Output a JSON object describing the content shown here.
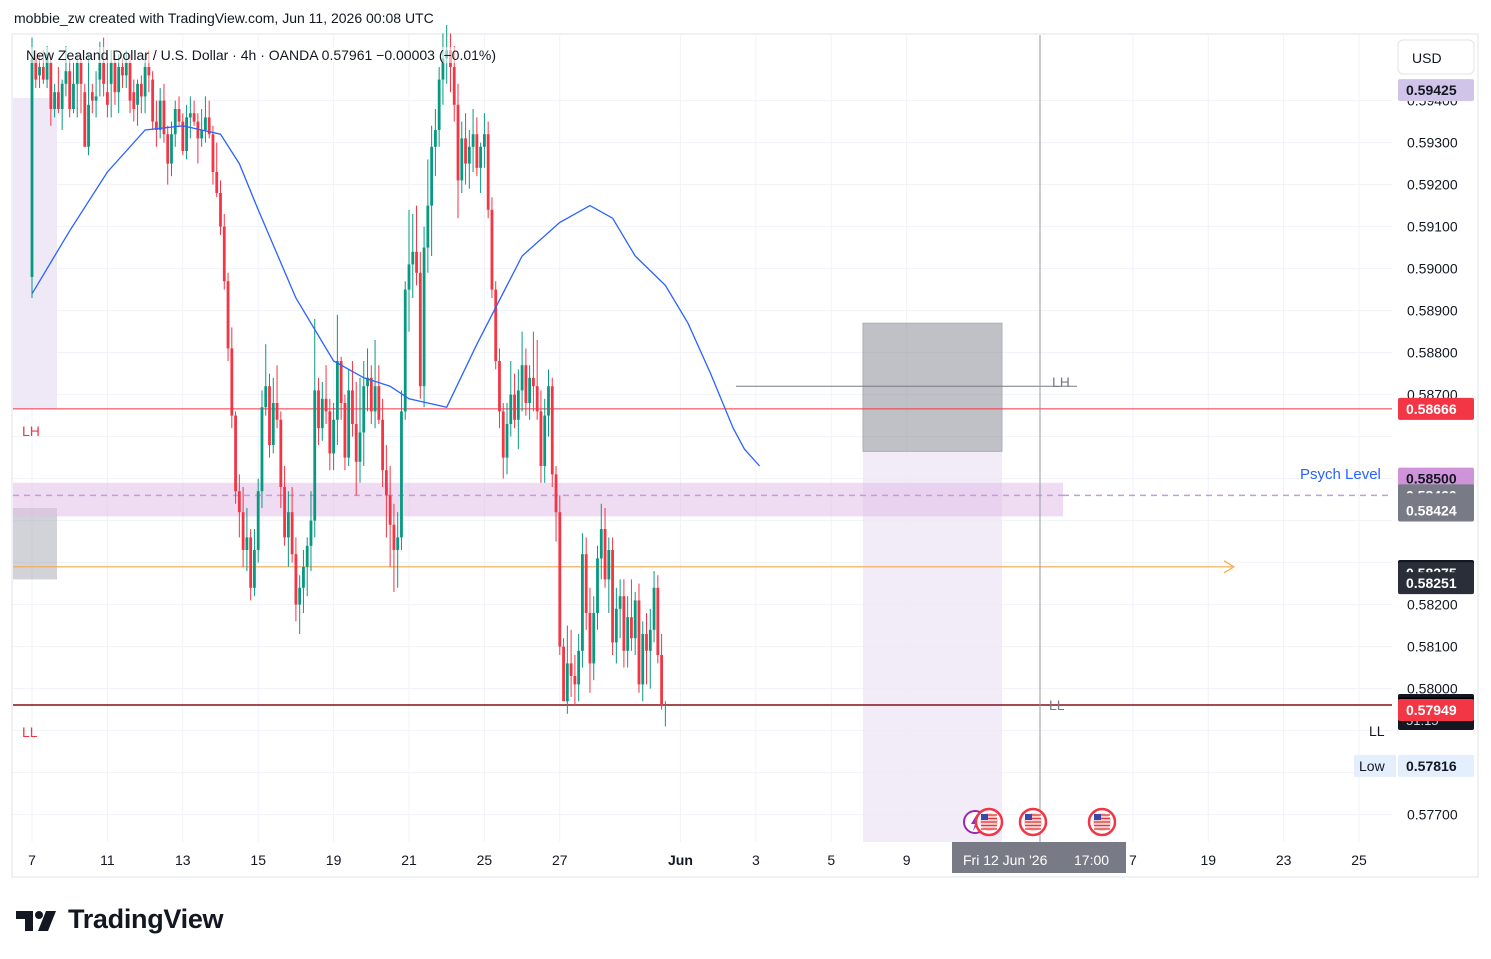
{
  "header": {
    "attribution": "mobbie_zw created with TradingView.com, Jun 11, 2026 00:08 UTC",
    "symbol_line": "New Zealand Dollar / U.S. Dollar · 4h · OANDA  0.57961  −0.00003 (−0.01%)"
  },
  "brand": {
    "name": "TradingView",
    "icon": "tradingview-logo-icon"
  },
  "colors": {
    "up": "#089981",
    "down": "#f23645",
    "ema": "#2962ff",
    "red_line": "#f23645",
    "dark_line": "#880e1c",
    "orange_line": "#f7a94c",
    "psych_line": "#c39ce0",
    "zone_fill": "#e1bee7",
    "gray_box": "#b2b5be",
    "lavender": "#ede7f6"
  },
  "price_scale": {
    "currency": "USD",
    "ticks": [
      "0.59400",
      "0.59300",
      "0.59200",
      "0.59100",
      "0.59000",
      "0.58900",
      "0.58800",
      "0.58700",
      "0.58200",
      "0.58100",
      "0.58000",
      "0.57700"
    ],
    "tick_values": [
      0.594,
      0.593,
      0.592,
      0.591,
      0.59,
      0.589,
      0.588,
      0.587,
      0.582,
      0.581,
      0.58,
      0.577
    ],
    "labels": [
      {
        "text": "0.59425",
        "value": 0.59425,
        "bg": "#d1c4e9",
        "fg": "#131722"
      },
      {
        "text": "0.58666",
        "value": 0.58666,
        "bg": "#f23645",
        "fg": "#ffffff"
      },
      {
        "text": "0.58500",
        "value": 0.585,
        "bg": "#ce93d8",
        "fg": "#131722"
      },
      {
        "text": "0.58460",
        "value": 0.5846,
        "bg": "#787b86",
        "fg": "#ffffff"
      },
      {
        "text": "0.58439",
        "value": 0.58439,
        "bg": "#787b86",
        "fg": "#ffffff"
      },
      {
        "text": "0.58424",
        "value": 0.58424,
        "bg": "#787b86",
        "fg": "#ffffff"
      },
      {
        "text": "0.58280",
        "value": 0.5828,
        "bg": "#131722",
        "fg": "#ffffff"
      },
      {
        "text": "0.58275",
        "value": 0.58275,
        "bg": "#2a2e39",
        "fg": "#ffffff"
      },
      {
        "text": "0.58251",
        "value": 0.58251,
        "bg": "#2a2e39",
        "fg": "#ffffff"
      },
      {
        "text": "0.57961",
        "value": 0.57961,
        "bg": "#131722",
        "fg": "#ffffff",
        "sub": "51:15"
      },
      {
        "text": "0.57953",
        "value": 0.57953,
        "bg": "#000000",
        "fg": "#ffffff"
      },
      {
        "text": "0.57949",
        "value": 0.57949,
        "bg": "#f23645",
        "fg": "#ffffff"
      },
      {
        "text": "0.57816",
        "value": 0.57816,
        "bg": "#e3effd",
        "fg": "#131722",
        "tag": "Low"
      }
    ]
  },
  "time_axis": {
    "ticks": [
      {
        "label": "7",
        "bar": 0
      },
      {
        "label": "11",
        "bar": 20
      },
      {
        "label": "13",
        "bar": 40
      },
      {
        "label": "15",
        "bar": 60
      },
      {
        "label": "19",
        "bar": 80
      },
      {
        "label": "21",
        "bar": 100
      },
      {
        "label": "25",
        "bar": 120
      },
      {
        "label": "27",
        "bar": 140
      },
      {
        "label": "Jun",
        "bar": 172,
        "bold": true
      },
      {
        "label": "3",
        "bar": 192
      },
      {
        "label": "5",
        "bar": 212
      },
      {
        "label": "9",
        "bar": 232
      },
      {
        "label": "7",
        "bar": 292
      },
      {
        "label": "19",
        "bar": 312
      },
      {
        "label": "23",
        "bar": 332
      },
      {
        "label": "25",
        "bar": 352
      }
    ],
    "crosshair_label": "Fri 12 Jun '26",
    "crosshair_time": "17:00"
  },
  "annotations": {
    "lh_left": "LH",
    "ll_left": "LL",
    "lh_right": "LH",
    "ll_right": "LL",
    "ll_far": "LL",
    "psych": "Psych Level"
  },
  "chart_data": {
    "type": "candlestick",
    "title": "New Zealand Dollar / U.S. Dollar · 4h · OANDA",
    "timeframe": "4h",
    "last_price": 0.57961,
    "change": -3e-05,
    "change_pct": -0.01,
    "ylim": [
      0.5767,
      0.5951
    ],
    "indicator": "moving average (blue line)",
    "levels": {
      "lh_red": 0.58666,
      "ll_dark": 0.57961,
      "psych_level": 0.5846,
      "orange_ray": 0.5829,
      "purple_zone": [
        0.5841,
        0.5849
      ],
      "gray_box": [
        0.58565,
        0.5887
      ],
      "lh_gray_line": 0.5872
    },
    "candles": [
      [
        0.5898,
        0.5955,
        0.5893,
        0.595
      ],
      [
        0.595,
        0.5952,
        0.5943,
        0.5945
      ],
      [
        0.5946,
        0.5951,
        0.5943,
        0.5948
      ],
      [
        0.5948,
        0.5952,
        0.5944,
        0.5945
      ],
      [
        0.5945,
        0.5953,
        0.5943,
        0.5951
      ],
      [
        0.5949,
        0.5951,
        0.5934,
        0.5938
      ],
      [
        0.5938,
        0.5944,
        0.5936,
        0.5942
      ],
      [
        0.5942,
        0.5948,
        0.5937,
        0.5938
      ],
      [
        0.5938,
        0.5945,
        0.5933,
        0.5944
      ],
      [
        0.5944,
        0.5953,
        0.5941,
        0.5947
      ],
      [
        0.5947,
        0.595,
        0.5936,
        0.5938
      ],
      [
        0.5938,
        0.5949,
        0.5937,
        0.5944
      ],
      [
        0.5944,
        0.5951,
        0.5936,
        0.5949
      ],
      [
        0.5949,
        0.5951,
        0.5937,
        0.5944
      ],
      [
        0.5942,
        0.5944,
        0.5929,
        0.5929
      ],
      [
        0.5929,
        0.5951,
        0.5927,
        0.5939
      ],
      [
        0.5942,
        0.5944,
        0.5937,
        0.594
      ],
      [
        0.594,
        0.5947,
        0.5936,
        0.5941
      ],
      [
        0.5945,
        0.5954,
        0.5941,
        0.5949
      ],
      [
        0.5949,
        0.5955,
        0.5941,
        0.5944
      ],
      [
        0.5942,
        0.5951,
        0.5936,
        0.5939
      ],
      [
        0.5944,
        0.5952,
        0.5936,
        0.5949
      ],
      [
        0.5949,
        0.5951,
        0.5939,
        0.5942
      ],
      [
        0.5942,
        0.5951,
        0.5937,
        0.5948
      ],
      [
        0.5948,
        0.595,
        0.5943,
        0.5946
      ],
      [
        0.5946,
        0.5952,
        0.5943,
        0.5949
      ],
      [
        0.5949,
        0.5951,
        0.5937,
        0.594
      ],
      [
        0.5942,
        0.5945,
        0.5935,
        0.5938
      ],
      [
        0.5939,
        0.5945,
        0.5934,
        0.5944
      ],
      [
        0.5944,
        0.5946,
        0.5937,
        0.5941
      ],
      [
        0.5941,
        0.5951,
        0.5937,
        0.5948
      ],
      [
        0.5948,
        0.5952,
        0.5942,
        0.5946
      ],
      [
        0.5945,
        0.5947,
        0.5933,
        0.5935
      ],
      [
        0.5935,
        0.594,
        0.5929,
        0.5933
      ],
      [
        0.5933,
        0.5943,
        0.5931,
        0.594
      ],
      [
        0.594,
        0.5944,
        0.593,
        0.5932
      ],
      [
        0.5932,
        0.5934,
        0.592,
        0.5925
      ],
      [
        0.5925,
        0.5935,
        0.5922,
        0.5932
      ],
      [
        0.5932,
        0.594,
        0.5929,
        0.5938
      ],
      [
        0.5938,
        0.5941,
        0.5934,
        0.5935
      ],
      [
        0.5935,
        0.5937,
        0.5927,
        0.5928
      ],
      [
        0.5928,
        0.5939,
        0.5926,
        0.5936
      ],
      [
        0.5936,
        0.5941,
        0.5931,
        0.5937
      ],
      [
        0.5937,
        0.594,
        0.5934,
        0.5935
      ],
      [
        0.5935,
        0.5937,
        0.5925,
        0.5931
      ],
      [
        0.5931,
        0.5938,
        0.5929,
        0.5933
      ],
      [
        0.5933,
        0.5941,
        0.593,
        0.5936
      ],
      [
        0.5936,
        0.594,
        0.5931,
        0.5932
      ],
      [
        0.5932,
        0.5934,
        0.592,
        0.5923
      ],
      [
        0.5923,
        0.593,
        0.5917,
        0.5918
      ],
      [
        0.5918,
        0.5921,
        0.5908,
        0.591
      ],
      [
        0.591,
        0.5913,
        0.5895,
        0.5897
      ],
      [
        0.5897,
        0.5899,
        0.5878,
        0.5881
      ],
      [
        0.5881,
        0.5886,
        0.5862,
        0.5865
      ],
      [
        0.5865,
        0.5866,
        0.5844,
        0.5847
      ],
      [
        0.5847,
        0.5851,
        0.5836,
        0.5842
      ],
      [
        0.5842,
        0.5848,
        0.5829,
        0.5833
      ],
      [
        0.5833,
        0.5843,
        0.5828,
        0.5836
      ],
      [
        0.5836,
        0.5838,
        0.5821,
        0.5824
      ],
      [
        0.5824,
        0.5838,
        0.5822,
        0.5833
      ],
      [
        0.5833,
        0.585,
        0.583,
        0.5847
      ],
      [
        0.5847,
        0.5871,
        0.5843,
        0.5867
      ],
      [
        0.5867,
        0.5882,
        0.5865,
        0.5872
      ],
      [
        0.5872,
        0.5875,
        0.5855,
        0.5858
      ],
      [
        0.5858,
        0.5874,
        0.5856,
        0.5868
      ],
      [
        0.5868,
        0.5877,
        0.5862,
        0.5864
      ],
      [
        0.5864,
        0.5866,
        0.5843,
        0.5848
      ],
      [
        0.5848,
        0.5853,
        0.5834,
        0.5836
      ],
      [
        0.5836,
        0.5847,
        0.5829,
        0.5842
      ],
      [
        0.5842,
        0.5848,
        0.583,
        0.5832
      ],
      [
        0.5832,
        0.5836,
        0.5816,
        0.582
      ],
      [
        0.582,
        0.5827,
        0.5813,
        0.5824
      ],
      [
        0.5824,
        0.5833,
        0.5818,
        0.5829
      ],
      [
        0.5829,
        0.5836,
        0.5822,
        0.5834
      ],
      [
        0.5834,
        0.5847,
        0.5828,
        0.584
      ],
      [
        0.584,
        0.5888,
        0.5836,
        0.5871
      ],
      [
        0.5871,
        0.5874,
        0.5858,
        0.5862
      ],
      [
        0.5862,
        0.5873,
        0.5859,
        0.5869
      ],
      [
        0.5869,
        0.5877,
        0.5863,
        0.5866
      ],
      [
        0.5866,
        0.5869,
        0.5852,
        0.5856
      ],
      [
        0.5856,
        0.5868,
        0.5852,
        0.5864
      ],
      [
        0.5864,
        0.5889,
        0.5858,
        0.5878
      ],
      [
        0.5878,
        0.5879,
        0.5864,
        0.5868
      ],
      [
        0.5868,
        0.587,
        0.5852,
        0.5855
      ],
      [
        0.5855,
        0.5876,
        0.5853,
        0.5871
      ],
      [
        0.5871,
        0.5878,
        0.586,
        0.5863
      ],
      [
        0.5863,
        0.5873,
        0.5846,
        0.5854
      ],
      [
        0.5854,
        0.5874,
        0.5849,
        0.5861
      ],
      [
        0.5861,
        0.5878,
        0.5853,
        0.5872
      ],
      [
        0.5872,
        0.5881,
        0.5866,
        0.5874
      ],
      [
        0.5874,
        0.5877,
        0.5863,
        0.5866
      ],
      [
        0.5866,
        0.5883,
        0.5862,
        0.5872
      ],
      [
        0.5872,
        0.5877,
        0.5863,
        0.5864
      ],
      [
        0.5864,
        0.5869,
        0.5848,
        0.5852
      ],
      [
        0.5852,
        0.5858,
        0.5836,
        0.5846
      ],
      [
        0.5846,
        0.5853,
        0.5829,
        0.5839
      ],
      [
        0.5839,
        0.5844,
        0.5823,
        0.5833
      ],
      [
        0.5833,
        0.5842,
        0.5824,
        0.5836
      ],
      [
        0.5836,
        0.5871,
        0.5833,
        0.5866
      ],
      [
        0.5866,
        0.5897,
        0.5864,
        0.5895
      ],
      [
        0.5895,
        0.5914,
        0.5885,
        0.5901
      ],
      [
        0.5901,
        0.5913,
        0.5893,
        0.5904
      ],
      [
        0.5904,
        0.5915,
        0.5896,
        0.5899
      ],
      [
        0.5899,
        0.5904,
        0.5869,
        0.5872
      ],
      [
        0.5872,
        0.591,
        0.5867,
        0.5905
      ],
      [
        0.5905,
        0.5926,
        0.5899,
        0.5915
      ],
      [
        0.5915,
        0.5934,
        0.5903,
        0.5929
      ],
      [
        0.5929,
        0.5938,
        0.5922,
        0.5933
      ],
      [
        0.5933,
        0.5948,
        0.5929,
        0.5945
      ],
      [
        0.5945,
        0.5956,
        0.5939,
        0.595
      ],
      [
        0.595,
        0.5958,
        0.5944,
        0.5952
      ],
      [
        0.5952,
        0.5956,
        0.5942,
        0.5948
      ],
      [
        0.5948,
        0.5953,
        0.5935,
        0.5939
      ],
      [
        0.5939,
        0.5944,
        0.5912,
        0.5921
      ],
      [
        0.5921,
        0.5935,
        0.5918,
        0.5931
      ],
      [
        0.5931,
        0.5937,
        0.592,
        0.5925
      ],
      [
        0.5925,
        0.5933,
        0.5919,
        0.5929
      ],
      [
        0.5929,
        0.5938,
        0.5923,
        0.5932
      ],
      [
        0.5932,
        0.5936,
        0.5922,
        0.5924
      ],
      [
        0.5924,
        0.593,
        0.5918,
        0.5929
      ],
      [
        0.5929,
        0.5937,
        0.5924,
        0.5932
      ],
      [
        0.5932,
        0.5935,
        0.5912,
        0.5914
      ],
      [
        0.5914,
        0.5917,
        0.5893,
        0.5895
      ],
      [
        0.5895,
        0.5897,
        0.5876,
        0.5878
      ],
      [
        0.5878,
        0.5881,
        0.5862,
        0.5866
      ],
      [
        0.5866,
        0.5868,
        0.585,
        0.5855
      ],
      [
        0.5855,
        0.5868,
        0.5851,
        0.5863
      ],
      [
        0.5863,
        0.5878,
        0.586,
        0.587
      ],
      [
        0.587,
        0.5875,
        0.5862,
        0.5864
      ],
      [
        0.5864,
        0.5876,
        0.5857,
        0.5871
      ],
      [
        0.5871,
        0.5885,
        0.5866,
        0.5877
      ],
      [
        0.5877,
        0.5881,
        0.5865,
        0.5868
      ],
      [
        0.5868,
        0.5877,
        0.5864,
        0.5874
      ],
      [
        0.5874,
        0.5885,
        0.5866,
        0.5872
      ],
      [
        0.5872,
        0.5883,
        0.5864,
        0.5866
      ],
      [
        0.5866,
        0.5871,
        0.5849,
        0.5853
      ],
      [
        0.5853,
        0.5869,
        0.5849,
        0.5865
      ],
      [
        0.5865,
        0.5876,
        0.586,
        0.5872
      ],
      [
        0.5872,
        0.5874,
        0.5848,
        0.5851
      ],
      [
        0.5851,
        0.5853,
        0.5835,
        0.5842
      ],
      [
        0.5842,
        0.5846,
        0.5808,
        0.581
      ],
      [
        0.581,
        0.5812,
        0.5798,
        0.5797
      ],
      [
        0.5797,
        0.5815,
        0.5794,
        0.5806
      ],
      [
        0.5806,
        0.5814,
        0.5798,
        0.5803
      ],
      [
        0.5803,
        0.5808,
        0.5796,
        0.5801
      ],
      [
        0.5801,
        0.5813,
        0.5797,
        0.5809
      ],
      [
        0.5809,
        0.5837,
        0.5805,
        0.5832
      ],
      [
        0.5832,
        0.5836,
        0.5814,
        0.5818
      ],
      [
        0.5818,
        0.5824,
        0.5799,
        0.5806
      ],
      [
        0.5806,
        0.5822,
        0.5802,
        0.5818
      ],
      [
        0.5818,
        0.5834,
        0.5814,
        0.5831
      ],
      [
        0.5831,
        0.5844,
        0.5826,
        0.5838
      ],
      [
        0.5838,
        0.5843,
        0.5824,
        0.5826
      ],
      [
        0.5826,
        0.5836,
        0.5818,
        0.5833
      ],
      [
        0.5833,
        0.5836,
        0.5808,
        0.5811
      ],
      [
        0.5811,
        0.5824,
        0.5806,
        0.5819
      ],
      [
        0.5819,
        0.5826,
        0.5812,
        0.5822
      ],
      [
        0.5822,
        0.5826,
        0.5805,
        0.5809
      ],
      [
        0.5809,
        0.5822,
        0.5805,
        0.5817
      ],
      [
        0.5817,
        0.5826,
        0.5809,
        0.5812
      ],
      [
        0.5812,
        0.5823,
        0.5808,
        0.5821
      ],
      [
        0.5821,
        0.5825,
        0.5799,
        0.5801
      ],
      [
        0.5801,
        0.5816,
        0.5797,
        0.5813
      ],
      [
        0.5813,
        0.5818,
        0.5801,
        0.5809
      ],
      [
        0.5809,
        0.5819,
        0.58,
        0.5814
      ],
      [
        0.5814,
        0.5828,
        0.5811,
        0.5824
      ],
      [
        0.5824,
        0.5827,
        0.5806,
        0.5808
      ],
      [
        0.5808,
        0.5813,
        0.5795,
        0.5796
      ],
      [
        0.5796,
        0.5797,
        0.5791,
        0.57961
      ]
    ],
    "ema": [
      [
        0,
        0.5894
      ],
      [
        10,
        0.5909
      ],
      [
        20,
        0.5923
      ],
      [
        30,
        0.5933
      ],
      [
        40,
        0.5934
      ],
      [
        50,
        0.5932
      ],
      [
        55,
        0.5925
      ],
      [
        60,
        0.5914
      ],
      [
        70,
        0.5893
      ],
      [
        80,
        0.5878
      ],
      [
        88,
        0.5874
      ],
      [
        95,
        0.5872
      ],
      [
        100,
        0.5869
      ],
      [
        110,
        0.5867
      ],
      [
        118,
        0.5882
      ],
      [
        130,
        0.5903
      ],
      [
        140,
        0.5911
      ],
      [
        148,
        0.5915
      ],
      [
        154,
        0.5912
      ],
      [
        160,
        0.5903
      ],
      [
        168,
        0.5896
      ],
      [
        174,
        0.5887
      ],
      [
        180,
        0.5875
      ],
      [
        186,
        0.5862
      ],
      [
        189,
        0.5857
      ],
      [
        193,
        0.5853
      ]
    ]
  }
}
